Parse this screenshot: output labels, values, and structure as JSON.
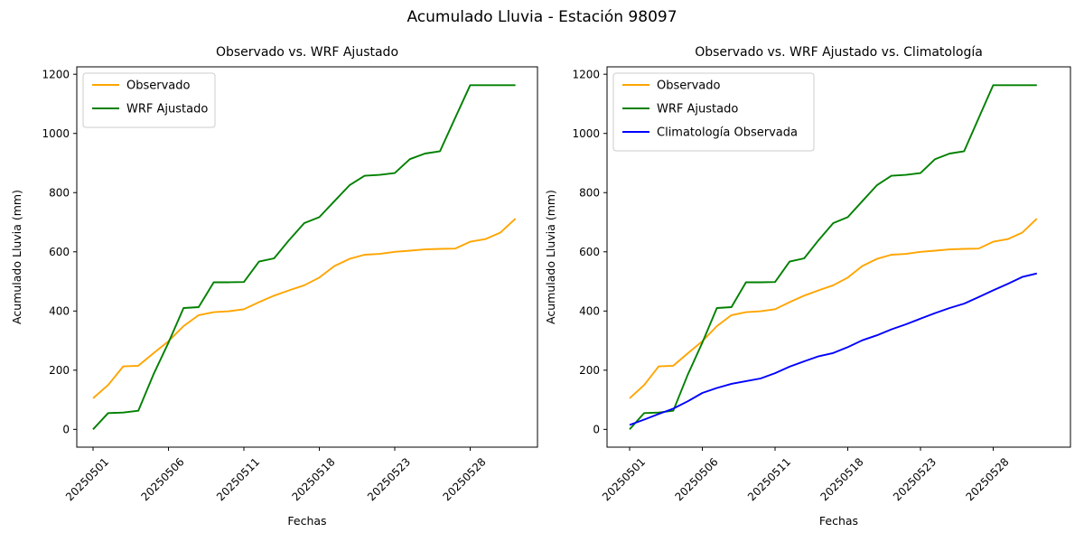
{
  "figure": {
    "suptitle": "Acumulado Lluvia - Estación 98097",
    "background": "#ffffff",
    "text_color": "#000000",
    "spine_color": "#000000"
  },
  "chart_data": [
    {
      "type": "line",
      "title": "Observado vs. WRF Ajustado",
      "xlabel": "Fechas",
      "ylabel": "Acumulado Lluvia (mm)",
      "grid": false,
      "legend_position": "upper left",
      "ylim": [
        -60,
        1225
      ],
      "yticks": [
        0,
        200,
        400,
        600,
        800,
        1000,
        1200
      ],
      "x": [
        "20250501",
        "20250502",
        "20250503",
        "20250504",
        "20250505",
        "20250506",
        "20250507",
        "20250508",
        "20250509",
        "20250510",
        "20250511",
        "20250512",
        "20250513",
        "20250514",
        "20250515",
        "20250518",
        "20250519",
        "20250520",
        "20250521",
        "20250522",
        "20250523",
        "20250524",
        "20250525",
        "20250526",
        "20250527",
        "20250528",
        "20250529",
        "20250530",
        "20250531"
      ],
      "xtick_indices": [
        0,
        5,
        10,
        15,
        20,
        25
      ],
      "xtick_labels": [
        "20250501",
        "20250506",
        "20250511",
        "20250518",
        "20250523",
        "20250528"
      ],
      "xtick_rotation": 45,
      "series": [
        {
          "name": "Observado",
          "color": "#FFA500",
          "values": [
            105,
            150,
            213,
            215,
            257,
            298,
            349,
            386,
            396,
            399,
            406,
            430,
            452,
            470,
            487,
            513,
            552,
            576,
            590,
            593,
            600,
            604,
            608,
            610,
            611,
            634,
            643,
            665,
            712
          ]
        },
        {
          "name": "WRF Ajustado",
          "color": "#008000",
          "values": [
            0,
            55,
            57,
            63,
            185,
            293,
            410,
            413,
            497,
            497,
            498,
            567,
            578,
            640,
            697,
            717,
            771,
            825,
            857,
            860,
            866,
            913,
            932,
            940,
            1052,
            1163,
            1163,
            1163,
            1163
          ]
        }
      ]
    },
    {
      "type": "line",
      "title": "Observado vs. WRF Ajustado vs. Climatología",
      "xlabel": "Fechas",
      "ylabel": "Acumulado Lluvia (mm)",
      "grid": false,
      "legend_position": "upper left",
      "ylim": [
        -60,
        1225
      ],
      "yticks": [
        0,
        200,
        400,
        600,
        800,
        1000,
        1200
      ],
      "x": [
        "20250501",
        "20250502",
        "20250503",
        "20250504",
        "20250505",
        "20250506",
        "20250507",
        "20250508",
        "20250509",
        "20250510",
        "20250511",
        "20250512",
        "20250513",
        "20250514",
        "20250515",
        "20250518",
        "20250519",
        "20250520",
        "20250521",
        "20250522",
        "20250523",
        "20250524",
        "20250525",
        "20250526",
        "20250527",
        "20250528",
        "20250529",
        "20250530",
        "20250531"
      ],
      "xtick_indices": [
        0,
        5,
        10,
        15,
        20,
        25
      ],
      "xtick_labels": [
        "20250501",
        "20250506",
        "20250511",
        "20250518",
        "20250523",
        "20250528"
      ],
      "xtick_rotation": 45,
      "series": [
        {
          "name": "Observado",
          "color": "#FFA500",
          "values": [
            105,
            150,
            213,
            215,
            257,
            298,
            349,
            386,
            396,
            399,
            406,
            430,
            452,
            470,
            487,
            513,
            552,
            576,
            590,
            593,
            600,
            604,
            608,
            610,
            611,
            634,
            643,
            665,
            712
          ]
        },
        {
          "name": "WRF Ajustado",
          "color": "#008000",
          "values": [
            0,
            55,
            57,
            63,
            185,
            293,
            410,
            413,
            497,
            497,
            498,
            567,
            578,
            640,
            697,
            717,
            771,
            825,
            857,
            860,
            866,
            913,
            932,
            940,
            1052,
            1163,
            1163,
            1163,
            1163
          ]
        },
        {
          "name": "Climatología Observada",
          "color": "#0000FF",
          "values": [
            15,
            33,
            52,
            70,
            95,
            123,
            140,
            154,
            163,
            172,
            190,
            212,
            230,
            247,
            258,
            278,
            301,
            318,
            338,
            355,
            374,
            393,
            410,
            425,
            447,
            470,
            492,
            515,
            527
          ]
        }
      ]
    }
  ]
}
